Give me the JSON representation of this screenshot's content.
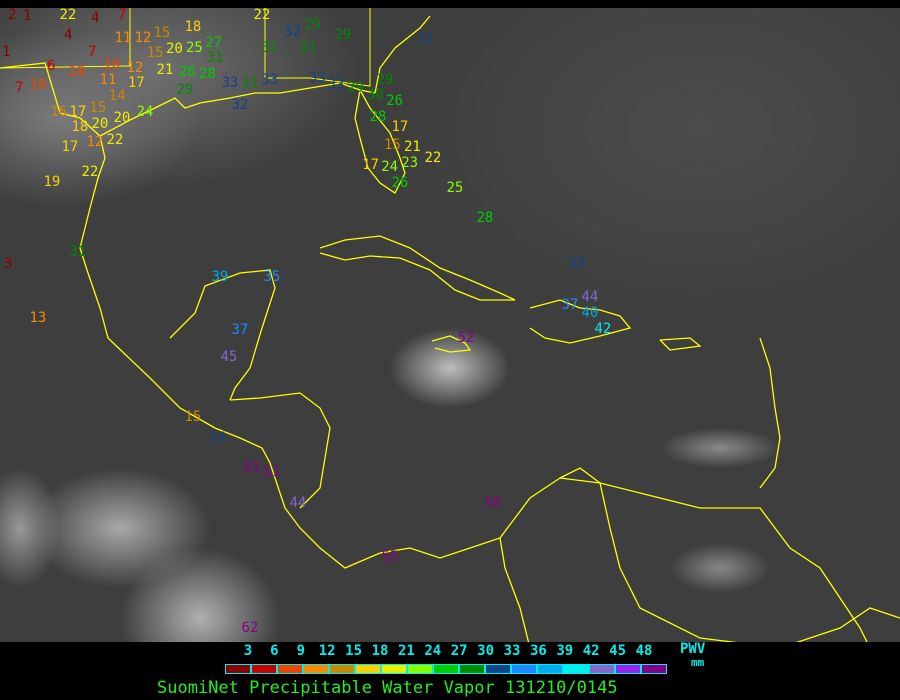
{
  "title": "SuomiNet Precipitable Water Vapor 131210/0145",
  "legend": {
    "unit_label": "PWV",
    "unit": "mm",
    "ticks": [
      "3",
      "6",
      "9",
      "12",
      "15",
      "18",
      "21",
      "24",
      "27",
      "30",
      "33",
      "36",
      "39",
      "42",
      "45",
      "48"
    ],
    "colors": [
      "#8b0000",
      "#cc0000",
      "#ee4400",
      "#ff8800",
      "#cc8800",
      "#ffd000",
      "#eeee00",
      "#88ff00",
      "#00cc00",
      "#008800",
      "#114488",
      "#2288ff",
      "#00aaee",
      "#00eeee",
      "#8866cc",
      "#9922ee",
      "#880088"
    ]
  },
  "map": {
    "coastline_color": "#ffff00",
    "background": "infrared satellite imagery"
  },
  "stations": [
    "2",
    "1",
    "22",
    "4",
    "7",
    "4",
    "1",
    "7",
    "6",
    "10",
    "10",
    "12",
    "7",
    "10",
    "11",
    "14",
    "17",
    "16",
    "17",
    "15",
    "18",
    "20",
    "20",
    "24",
    "17",
    "12",
    "22",
    "22",
    "19",
    "18",
    "11",
    "12",
    "15",
    "15",
    "20",
    "25",
    "27",
    "31",
    "21",
    "26",
    "28",
    "29",
    "33",
    "31",
    "32",
    "33",
    "22",
    "32",
    "29",
    "31",
    "31",
    "29",
    "33",
    "33",
    "29",
    "30",
    "26",
    "28",
    "17",
    "15",
    "21",
    "17",
    "23",
    "24",
    "26",
    "22",
    "33",
    "29",
    "25",
    "28",
    "3",
    "31",
    "13",
    "39",
    "35",
    "37",
    "45",
    "15",
    "34",
    "51",
    "51",
    "52",
    "33",
    "37",
    "44",
    "40",
    "42",
    "44",
    "50",
    "55",
    "62"
  ]
}
